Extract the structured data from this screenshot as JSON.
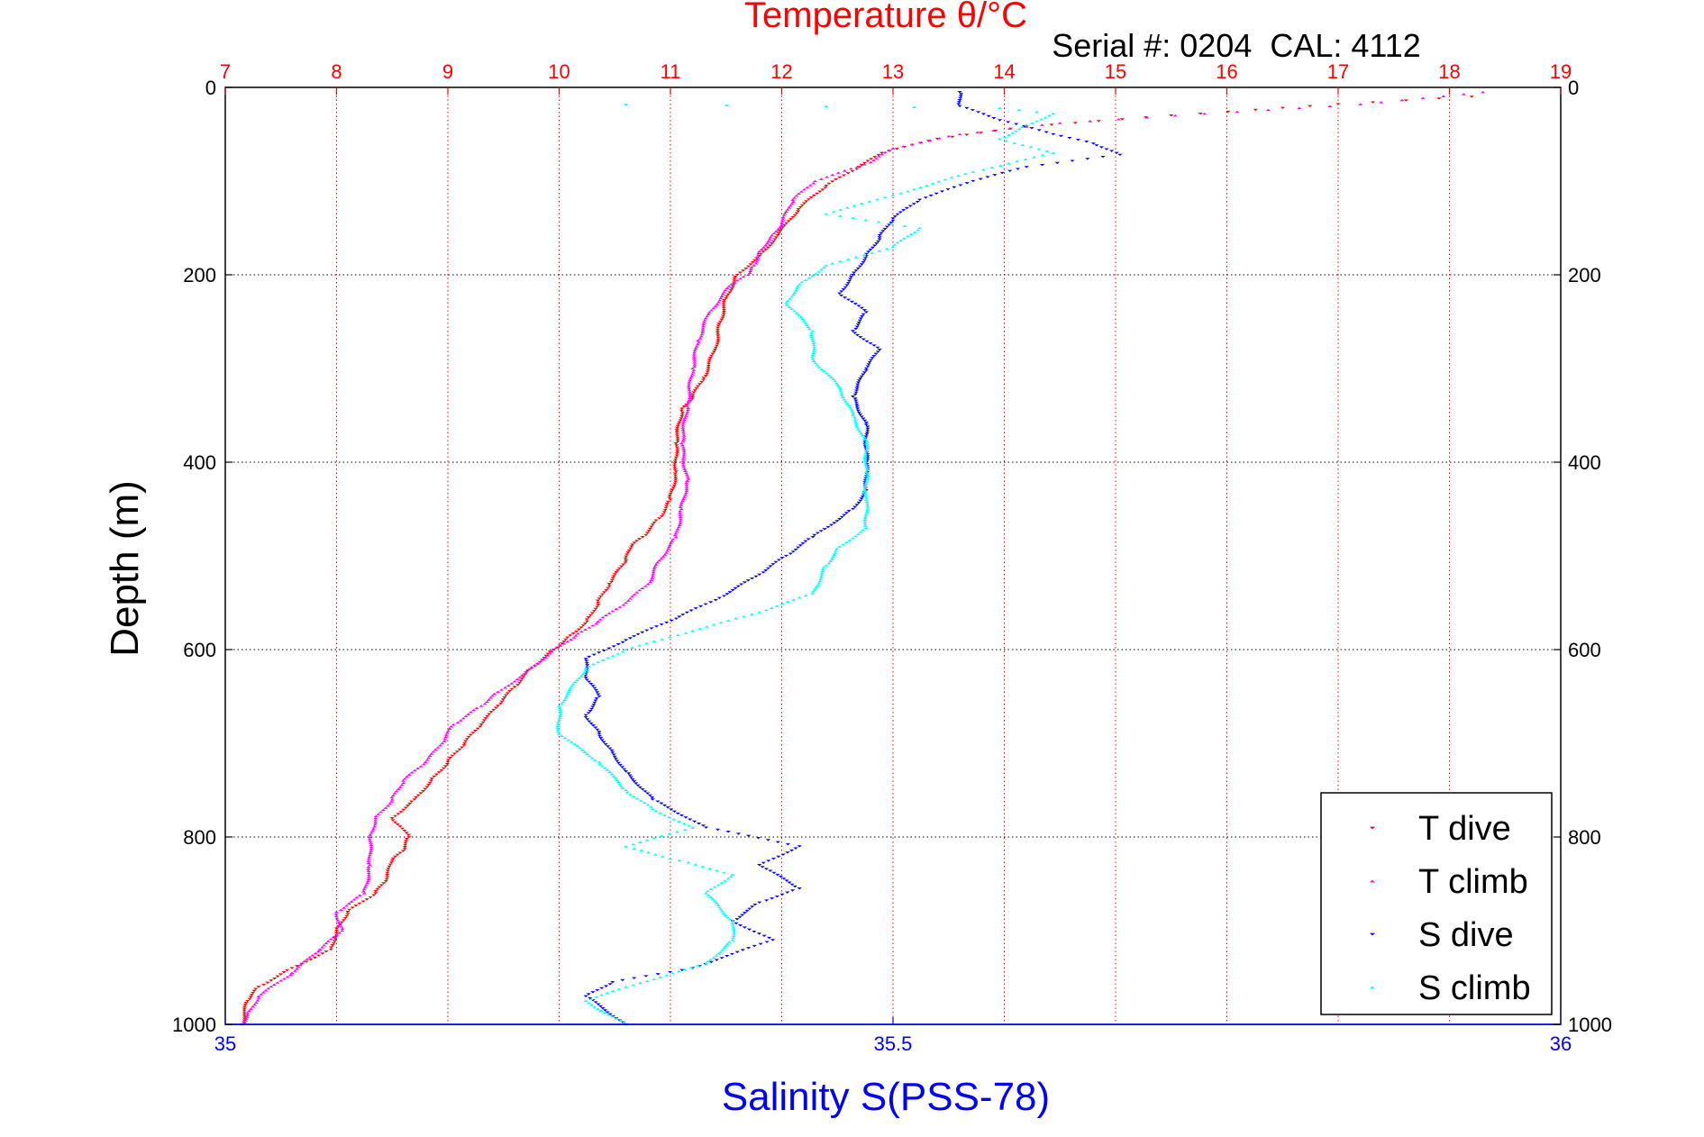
{
  "chart_data": {
    "type": "scatter",
    "title": "Temperature θ/°C",
    "subtitle": "Serial #: 0204  CAL: 4112",
    "xlabel": "Salinity S(PSS-78)",
    "ylabel": "Depth (m)",
    "x_top": {
      "label": "Temperature θ/°C",
      "lim": [
        7,
        19
      ],
      "ticks": [
        7,
        8,
        9,
        10,
        11,
        12,
        13,
        14,
        15,
        16,
        17,
        18,
        19
      ],
      "tick_labels": [
        "7",
        "8",
        "9",
        "10",
        "11",
        "12",
        "13",
        "14",
        "15",
        "16",
        "17",
        "18",
        "19"
      ]
    },
    "x_bottom": {
      "label": "Salinity S(PSS-78)",
      "lim": [
        35,
        36
      ],
      "ticks": [
        35,
        35.5,
        36
      ],
      "tick_labels": [
        "35",
        "35.5",
        "36"
      ]
    },
    "y": {
      "label": "Depth (m)",
      "lim": [
        0,
        1000
      ],
      "reversed": true,
      "ticks": [
        0,
        200,
        400,
        600,
        800,
        1000
      ],
      "tick_labels": [
        "0",
        "200",
        "400",
        "600",
        "800",
        "1000"
      ]
    },
    "grid": true,
    "legend_position": "bottom-right",
    "series": [
      {
        "name": "T dive",
        "axis": "temperature",
        "color": "#ff0000",
        "marker": "down-triangle",
        "points": [
          [
            18.2,
            10
          ],
          [
            17.0,
            18
          ],
          [
            15.5,
            30
          ],
          [
            14.2,
            42
          ],
          [
            13.4,
            55
          ],
          [
            12.9,
            70
          ],
          [
            12.7,
            85
          ],
          [
            12.4,
            105
          ],
          [
            12.15,
            130
          ],
          [
            11.95,
            160
          ],
          [
            11.8,
            180
          ],
          [
            11.6,
            200
          ],
          [
            11.5,
            225
          ],
          [
            11.45,
            250
          ],
          [
            11.4,
            280
          ],
          [
            11.3,
            310
          ],
          [
            11.2,
            330
          ],
          [
            11.1,
            345
          ],
          [
            11.05,
            380
          ],
          [
            11.05,
            410
          ],
          [
            11.0,
            440
          ],
          [
            10.9,
            460
          ],
          [
            10.75,
            480
          ],
          [
            10.65,
            490
          ],
          [
            10.6,
            505
          ],
          [
            10.45,
            530
          ],
          [
            10.35,
            550
          ],
          [
            10.25,
            570
          ],
          [
            10.1,
            585
          ],
          [
            9.95,
            600
          ],
          [
            9.75,
            620
          ],
          [
            9.6,
            640
          ],
          [
            9.45,
            660
          ],
          [
            9.3,
            680
          ],
          [
            9.15,
            700
          ],
          [
            9.0,
            720
          ],
          [
            8.85,
            740
          ],
          [
            8.7,
            760
          ],
          [
            8.5,
            780
          ],
          [
            8.65,
            800
          ],
          [
            8.6,
            815
          ],
          [
            8.5,
            825
          ],
          [
            8.45,
            845
          ],
          [
            8.35,
            860
          ],
          [
            8.1,
            880
          ],
          [
            8.0,
            900
          ],
          [
            7.95,
            920
          ],
          [
            7.6,
            940
          ],
          [
            7.3,
            960
          ],
          [
            7.2,
            975
          ],
          [
            7.15,
            1000
          ]
        ]
      },
      {
        "name": "T climb",
        "axis": "temperature",
        "color": "#ff00ff",
        "marker": "up-triangle",
        "points": [
          [
            18.3,
            5
          ],
          [
            17.2,
            18
          ],
          [
            15.8,
            28
          ],
          [
            14.5,
            38
          ],
          [
            13.6,
            50
          ],
          [
            13.0,
            65
          ],
          [
            12.8,
            80
          ],
          [
            12.3,
            100
          ],
          [
            12.1,
            120
          ],
          [
            12.0,
            145
          ],
          [
            11.9,
            160
          ],
          [
            11.8,
            175
          ],
          [
            11.75,
            190
          ],
          [
            11.7,
            200
          ],
          [
            11.55,
            210
          ],
          [
            11.35,
            240
          ],
          [
            11.25,
            270
          ],
          [
            11.2,
            300
          ],
          [
            11.15,
            340
          ],
          [
            11.1,
            380
          ],
          [
            11.15,
            420
          ],
          [
            11.1,
            450
          ],
          [
            11.05,
            480
          ],
          [
            10.9,
            505
          ],
          [
            10.8,
            530
          ],
          [
            10.6,
            550
          ],
          [
            10.35,
            570
          ],
          [
            10.15,
            585
          ],
          [
            9.95,
            600
          ],
          [
            9.7,
            625
          ],
          [
            9.45,
            645
          ],
          [
            9.3,
            660
          ],
          [
            9.05,
            680
          ],
          [
            8.95,
            700
          ],
          [
            8.8,
            720
          ],
          [
            8.6,
            740
          ],
          [
            8.5,
            760
          ],
          [
            8.35,
            780
          ],
          [
            8.3,
            800
          ],
          [
            8.3,
            830
          ],
          [
            8.25,
            860
          ],
          [
            8.0,
            880
          ],
          [
            8.05,
            900
          ],
          [
            7.85,
            920
          ],
          [
            7.6,
            945
          ],
          [
            7.3,
            970
          ],
          [
            7.2,
            990
          ],
          [
            7.15,
            1000
          ]
        ]
      },
      {
        "name": "S dive",
        "axis": "salinity",
        "color": "#0000ff",
        "marker": "down-triangle",
        "points": [
          [
            35.55,
            5
          ],
          [
            35.55,
            20
          ],
          [
            35.58,
            35
          ],
          [
            35.62,
            50
          ],
          [
            35.65,
            60
          ],
          [
            35.67,
            72
          ],
          [
            35.6,
            85
          ],
          [
            35.56,
            100
          ],
          [
            35.52,
            120
          ],
          [
            35.5,
            140
          ],
          [
            35.49,
            160
          ],
          [
            35.48,
            180
          ],
          [
            35.47,
            200
          ],
          [
            35.46,
            220
          ],
          [
            35.48,
            240
          ],
          [
            35.47,
            260
          ],
          [
            35.49,
            280
          ],
          [
            35.48,
            300
          ],
          [
            35.47,
            330
          ],
          [
            35.48,
            360
          ],
          [
            35.48,
            400
          ],
          [
            35.48,
            430
          ],
          [
            35.47,
            450
          ],
          [
            35.44,
            480
          ],
          [
            35.42,
            500
          ],
          [
            35.4,
            520
          ],
          [
            35.37,
            545
          ],
          [
            35.34,
            565
          ],
          [
            35.3,
            590
          ],
          [
            35.27,
            610
          ],
          [
            35.27,
            630
          ],
          [
            35.28,
            650
          ],
          [
            35.27,
            670
          ],
          [
            35.28,
            690
          ],
          [
            35.29,
            710
          ],
          [
            35.3,
            730
          ],
          [
            35.32,
            760
          ],
          [
            35.36,
            790
          ],
          [
            35.43,
            810
          ],
          [
            35.4,
            830
          ],
          [
            35.43,
            855
          ],
          [
            35.4,
            870
          ],
          [
            35.38,
            890
          ],
          [
            35.41,
            910
          ],
          [
            35.35,
            940
          ],
          [
            35.29,
            955
          ],
          [
            35.27,
            970
          ],
          [
            35.3,
            1000
          ]
        ]
      },
      {
        "name": "S climb",
        "axis": "salinity",
        "color": "#00ffff",
        "marker": "up-triangle",
        "points": [
          [
            35.3,
            18
          ],
          [
            35.45,
            20
          ],
          [
            35.58,
            22
          ],
          [
            35.62,
            28
          ],
          [
            35.6,
            40
          ],
          [
            35.58,
            55
          ],
          [
            35.62,
            70
          ],
          [
            35.56,
            90
          ],
          [
            35.5,
            115
          ],
          [
            35.45,
            135
          ],
          [
            35.52,
            150
          ],
          [
            35.5,
            170
          ],
          [
            35.45,
            190
          ],
          [
            35.43,
            210
          ],
          [
            35.42,
            230
          ],
          [
            35.44,
            260
          ],
          [
            35.44,
            290
          ],
          [
            35.46,
            320
          ],
          [
            35.47,
            350
          ],
          [
            35.48,
            380
          ],
          [
            35.48,
            410
          ],
          [
            35.48,
            440
          ],
          [
            35.48,
            470
          ],
          [
            35.46,
            490
          ],
          [
            35.45,
            510
          ],
          [
            35.44,
            540
          ],
          [
            35.4,
            560
          ],
          [
            35.35,
            580
          ],
          [
            35.3,
            600
          ],
          [
            35.27,
            620
          ],
          [
            35.25,
            660
          ],
          [
            35.25,
            690
          ],
          [
            35.28,
            720
          ],
          [
            35.3,
            750
          ],
          [
            35.32,
            770
          ],
          [
            35.35,
            790
          ],
          [
            35.3,
            810
          ],
          [
            35.34,
            825
          ],
          [
            35.38,
            840
          ],
          [
            35.36,
            860
          ],
          [
            35.38,
            890
          ],
          [
            35.38,
            910
          ],
          [
            35.36,
            935
          ],
          [
            35.3,
            960
          ],
          [
            35.27,
            975
          ],
          [
            35.3,
            1000
          ]
        ]
      }
    ]
  }
}
